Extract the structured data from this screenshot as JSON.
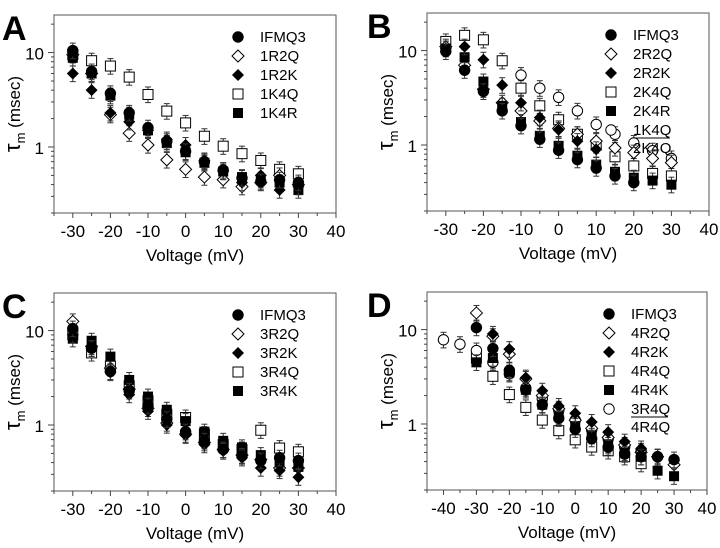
{
  "chart_data": [
    {
      "type": "scatter",
      "panel": "A",
      "xlabel": "Voltage (mV)",
      "ylabel": "τm (msec)",
      "yscale": "log",
      "xlim": [
        -35,
        40
      ],
      "ylim": [
        0.2,
        25
      ],
      "xticks": [
        -30,
        -20,
        -10,
        0,
        10,
        20,
        30,
        40
      ],
      "yticks": [
        1,
        10
      ],
      "legend_position": "top-right",
      "x": [
        -30,
        -25,
        -20,
        -15,
        -10,
        -5,
        0,
        5,
        10,
        15,
        20,
        25,
        30
      ],
      "series": [
        {
          "name": "IFMQ3",
          "marker": "filled-circle",
          "values": [
            10.5,
            6.3,
            3.7,
            2.3,
            1.6,
            1.15,
            0.9,
            0.7,
            0.57,
            0.47,
            0.43,
            0.45,
            0.42
          ]
        },
        {
          "name": "1R2Q",
          "marker": "open-diamond",
          "values": [
            9.5,
            6.0,
            2.2,
            1.4,
            1.05,
            0.73,
            0.58,
            0.48,
            0.45,
            0.38,
            0.42,
            0.5,
            0.4
          ]
        },
        {
          "name": "1R2K",
          "marker": "filled-diamond",
          "values": [
            6.0,
            4.0,
            2.3,
            1.85,
            1.5,
            1.2,
            1.05,
            0.72,
            0.55,
            0.42,
            0.5,
            0.35,
            0.38
          ]
        },
        {
          "name": "1K4Q",
          "marker": "open-square",
          "values": [
            9.5,
            8.2,
            7.2,
            5.5,
            3.6,
            2.4,
            1.8,
            1.3,
            1.02,
            0.85,
            0.72,
            0.58,
            0.52
          ]
        },
        {
          "name": "1K4R",
          "marker": "filled-square",
          "values": [
            8.8,
            6.0,
            3.5,
            2.2,
            1.5,
            1.1,
            0.88,
            0.68,
            0.55,
            0.48,
            0.45,
            0.42,
            0.35
          ]
        }
      ]
    },
    {
      "type": "scatter",
      "panel": "B",
      "xlabel": "Voltage (mV)",
      "ylabel": "τm (msec)",
      "yscale": "log",
      "xlim": [
        -35,
        40
      ],
      "ylim": [
        0.2,
        25
      ],
      "xticks": [
        -30,
        -20,
        -10,
        0,
        10,
        20,
        30,
        40
      ],
      "yticks": [
        1,
        10
      ],
      "legend_position": "top-right",
      "x": [
        -30,
        -25,
        -20,
        -15,
        -10,
        -5,
        0,
        5,
        10,
        15,
        20,
        25,
        30
      ],
      "series": [
        {
          "name": "IFMQ3",
          "marker": "filled-circle",
          "values": [
            9.8,
            6.2,
            3.7,
            2.3,
            1.6,
            1.15,
            0.88,
            0.7,
            0.57,
            0.47,
            0.4,
            null,
            null
          ]
        },
        {
          "name": "2R2Q",
          "marker": "open-diamond",
          "values": [
            11,
            7.0,
            3.9,
            2.8,
            2.3,
            1.8,
            1.5,
            1.3,
            1.1,
            0.93,
            0.83,
            0.72,
            0.65
          ]
        },
        {
          "name": "2R2K",
          "marker": "filled-diamond",
          "values": [
            10.5,
            11,
            8.0,
            4.3,
            2.8,
            1.95,
            1.45,
            1.1,
            0.9,
            null,
            null,
            null,
            null
          ]
        },
        {
          "name": "2K4Q",
          "marker": "open-square",
          "values": [
            12.5,
            14.5,
            13,
            7.8,
            4.0,
            2.6,
            1.85,
            1.3,
            1.0,
            0.75,
            0.6,
            0.5,
            0.47
          ]
        },
        {
          "name": "2K4R",
          "marker": "filled-square",
          "values": [
            10.5,
            8.5,
            4.7,
            2.6,
            1.75,
            1.25,
            0.98,
            0.77,
            0.62,
            0.52,
            0.45,
            0.42,
            0.38
          ]
        },
        {
          "name": "1K4Q / 2K4Q",
          "marker": "open-circle",
          "values": [
            null,
            null,
            null,
            null,
            5.5,
            4.0,
            3.2,
            2.3,
            1.65,
            1.3,
            1.05,
            0.87,
            0.72
          ]
        }
      ],
      "legend_extra": "2K4Q"
    },
    {
      "type": "scatter",
      "panel": "C",
      "xlabel": "Voltage (mV)",
      "ylabel": "τm (msec)",
      "yscale": "log",
      "xlim": [
        -35,
        40
      ],
      "ylim": [
        0.2,
        25
      ],
      "xticks": [
        -30,
        -20,
        -10,
        0,
        10,
        20,
        30,
        40
      ],
      "yticks": [
        1,
        10
      ],
      "legend_position": "top-right",
      "x": [
        -30,
        -25,
        -20,
        -15,
        -10,
        -5,
        0,
        5,
        10,
        15,
        20,
        25,
        30
      ],
      "series": [
        {
          "name": "IFMQ3",
          "marker": "filled-circle",
          "values": [
            10.5,
            6.5,
            3.7,
            2.3,
            1.6,
            1.15,
            0.85,
            0.68,
            0.55,
            0.47,
            0.42,
            0.45,
            0.42
          ]
        },
        {
          "name": "3R2Q",
          "marker": "open-diamond",
          "values": [
            12.5,
            6.8,
            4.0,
            2.4,
            1.5,
            1.05,
            0.8,
            0.65,
            0.55,
            0.48,
            0.43,
            0.35,
            0.35
          ]
        },
        {
          "name": "3R2K",
          "marker": "filled-diamond",
          "values": [
            9.0,
            6.5,
            3.6,
            2.1,
            1.4,
            1.0,
            0.78,
            0.62,
            0.53,
            0.45,
            0.35,
            0.33,
            0.28
          ]
        },
        {
          "name": "3R4Q",
          "marker": "open-square",
          "values": [
            9.0,
            5.8,
            4.2,
            2.6,
            1.8,
            1.3,
            1.2,
            0.8,
            0.62,
            0.55,
            0.88,
            0.57,
            0.52
          ]
        },
        {
          "name": "3R4K",
          "marker": "filled-square",
          "values": [
            8.2,
            7.8,
            5.3,
            3.0,
            2.0,
            1.45,
            1.1,
            0.85,
            0.68,
            0.58,
            0.48,
            0.4,
            0.36
          ]
        }
      ]
    },
    {
      "type": "scatter",
      "panel": "D",
      "xlabel": "Voltage (mV)",
      "ylabel": "τm (msec)",
      "yscale": "log",
      "xlim": [
        -45,
        40
      ],
      "ylim": [
        0.2,
        25
      ],
      "xticks": [
        -40,
        -30,
        -20,
        -10,
        0,
        10,
        20,
        30,
        40
      ],
      "yticks": [
        1,
        10
      ],
      "legend_position": "top-right",
      "x": [
        -40,
        -35,
        -30,
        -25,
        -20,
        -15,
        -10,
        -5,
        0,
        5,
        10,
        15,
        20,
        25,
        30
      ],
      "series": [
        {
          "name": "IFMQ3",
          "marker": "filled-circle",
          "values": [
            null,
            null,
            10.5,
            6.3,
            3.7,
            2.3,
            1.6,
            1.15,
            0.88,
            0.7,
            0.57,
            0.48,
            0.45,
            0.45,
            0.42
          ]
        },
        {
          "name": "4R2Q",
          "marker": "open-diamond",
          "values": [
            null,
            null,
            15,
            8.5,
            5.5,
            3.0,
            2.0,
            1.45,
            1.1,
            0.9,
            0.72,
            0.6,
            0.5,
            0.45,
            0.37
          ]
        },
        {
          "name": "4R2K",
          "marker": "filled-diamond",
          "values": [
            null,
            null,
            null,
            9.0,
            6.2,
            3.1,
            2.25,
            1.55,
            1.3,
            1.05,
            0.82,
            0.65,
            0.55,
            null,
            null
          ]
        },
        {
          "name": "4R4Q",
          "marker": "open-square",
          "values": [
            null,
            null,
            5.0,
            3.2,
            2.05,
            1.5,
            1.1,
            0.85,
            0.68,
            0.57,
            0.52,
            0.45,
            0.38,
            null,
            null
          ]
        },
        {
          "name": "4R4K",
          "marker": "filled-square",
          "values": [
            null,
            null,
            4.5,
            5.0,
            3.5,
            2.3,
            1.6,
            1.2,
            0.95,
            0.75,
            0.6,
            0.5,
            0.45,
            0.32,
            0.28
          ]
        },
        {
          "name": "3R4Q / 4R4Q",
          "marker": "open-circle",
          "values": [
            7.8,
            7.0,
            6.0,
            4.5,
            3.4,
            2.4,
            1.85,
            1.4,
            1.1,
            0.87,
            0.7,
            0.57,
            0.52,
            0.45,
            null
          ]
        }
      ],
      "legend_extra": "4R4Q"
    }
  ]
}
